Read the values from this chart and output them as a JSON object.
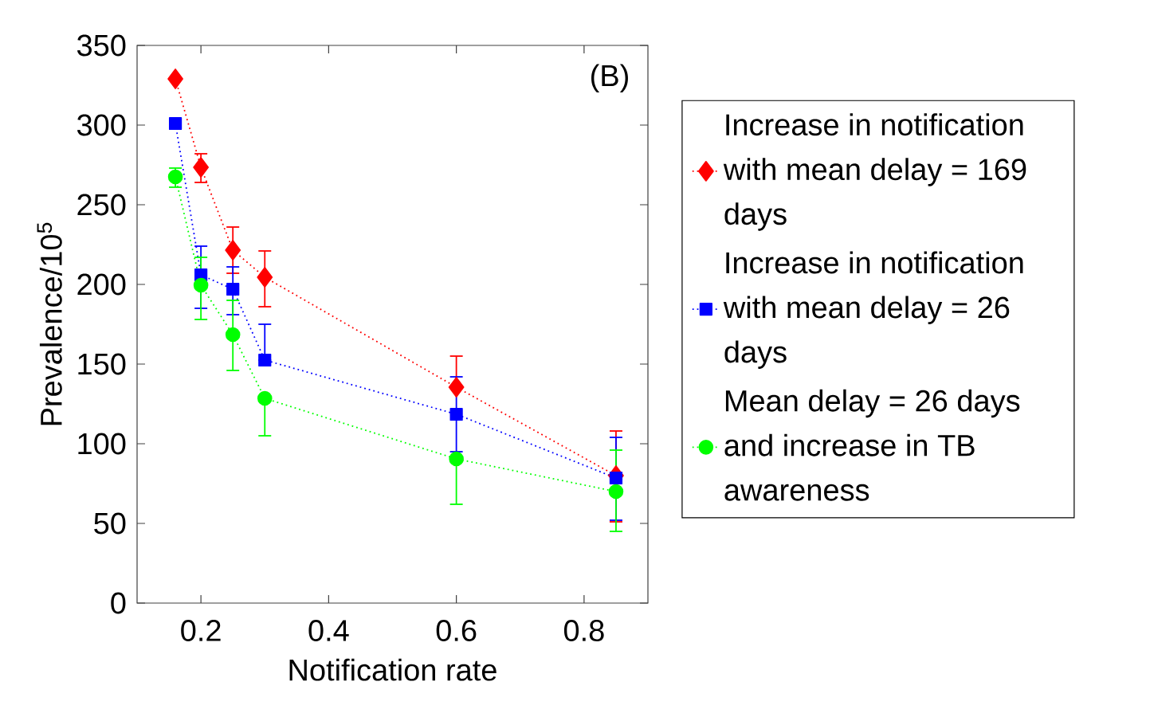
{
  "chart_data": {
    "type": "line",
    "xlabel": "Notification rate",
    "ylabel": "Prevalence/10$^{5}$",
    "annotations": [
      "(B)"
    ],
    "x": [
      0.16,
      0.2,
      0.25,
      0.3,
      0.6,
      0.85
    ],
    "series": [
      {
        "name": "Increase in notification with mean delay = 169 days",
        "color": "#ff0000",
        "marker": "diamond",
        "values": [
          329,
          273.5,
          221.5,
          204.5,
          135.5,
          80
        ],
        "errors": [
          null,
          [
            264,
            282
          ],
          [
            207,
            236
          ],
          [
            186,
            221
          ],
          [
            135.5,
            155
          ],
          [
            51,
            108
          ]
        ]
      },
      {
        "name": "Increase in notification with mean delay = 26 days",
        "color": "#0000ff",
        "marker": "square",
        "values": [
          301,
          206,
          197,
          152.5,
          118.5,
          78.5
        ],
        "errors": [
          null,
          [
            185,
            224
          ],
          [
            181,
            211
          ],
          [
            152.5,
            175
          ],
          [
            95,
            142
          ],
          [
            52,
            104
          ]
        ]
      },
      {
        "name": "Mean delay = 26 days and increase in TB awareness",
        "color": "#00ff00",
        "marker": "circle",
        "values": [
          267.5,
          199.5,
          168.5,
          128.5,
          90.5,
          70
        ],
        "errors": [
          [
            261,
            273
          ],
          [
            178,
            217
          ],
          [
            146,
            190
          ],
          [
            105,
            128.5
          ],
          [
            62,
            90.5
          ],
          [
            45,
            96
          ]
        ]
      }
    ],
    "line_style": "dotted",
    "legend": "right",
    "grid": false,
    "xlim": [
      0.1,
      0.9
    ],
    "xticks": [
      0.2,
      0.4,
      0.6,
      0.8
    ],
    "ylim": [
      0,
      350
    ],
    "yticks": [
      0,
      50,
      100,
      150,
      200,
      250,
      300,
      350
    ]
  }
}
